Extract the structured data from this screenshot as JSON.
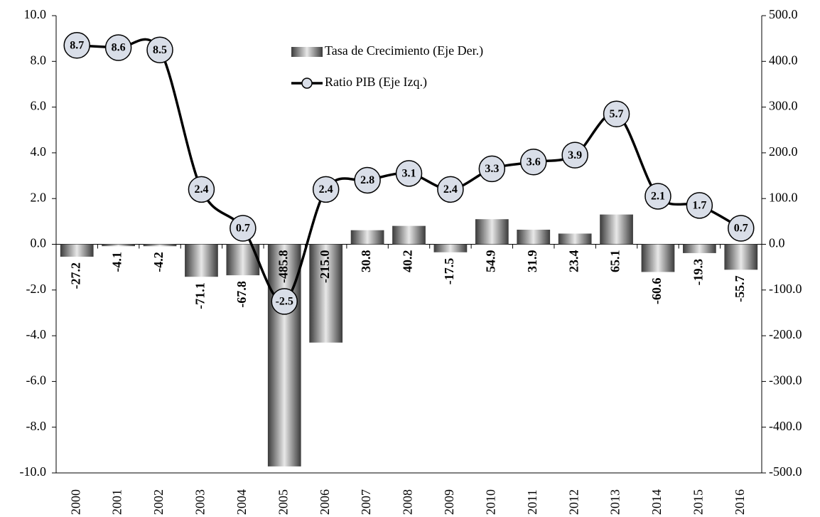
{
  "chart_data": {
    "type": "bar-line",
    "categories": [
      "2000",
      "2001",
      "2002",
      "2003",
      "2004",
      "2005",
      "2006",
      "2007",
      "2008",
      "2009",
      "2010",
      "2011",
      "2012",
      "2013",
      "2014",
      "2015",
      "2016"
    ],
    "series": [
      {
        "name": "Tasa de Crecimiento (Eje Der.)",
        "type": "bar",
        "axis": "y2",
        "color": "#808080",
        "values": [
          -27.2,
          -4.1,
          -4.2,
          -71.1,
          -67.8,
          -485.8,
          -215,
          30.8,
          40.2,
          -17.5,
          54.9,
          31.9,
          23.4,
          65.1,
          -60.6,
          -19.3,
          -55.7
        ],
        "value_labels": [
          "-27.2",
          "-4.1",
          "-4.2",
          "-71.1",
          "-67.8",
          "-485.8",
          "-215.0",
          "30.8",
          "40.2",
          "-17.5",
          "54.9",
          "31.9",
          "23.4",
          "65.1",
          "-60.6",
          "-19.3",
          "-55.7"
        ]
      },
      {
        "name": "Ratio PIB (Eje Izq.)",
        "type": "line",
        "axis": "y",
        "color": "#000000",
        "marker_fill": "#d9dee8",
        "values": [
          8.7,
          8.6,
          8.5,
          2.4,
          0.7,
          -2.5,
          2.4,
          2.8,
          3.1,
          2.4,
          3.3,
          3.6,
          3.9,
          5.7,
          2.1,
          1.7,
          0.7
        ]
      }
    ],
    "ylim": [
      -10,
      10
    ],
    "yticks": [
      {
        "value": -10,
        "label": "-10.0"
      },
      {
        "value": -8,
        "label": "-8.0"
      },
      {
        "value": -6,
        "label": "-6.0"
      },
      {
        "value": -4,
        "label": "-4.0"
      },
      {
        "value": -2,
        "label": "-2.0"
      },
      {
        "value": 0,
        "label": "0.0"
      },
      {
        "value": 2,
        "label": "2.0"
      },
      {
        "value": 4,
        "label": "4.0"
      },
      {
        "value": 6,
        "label": "6.0"
      },
      {
        "value": 8,
        "label": "8.0"
      },
      {
        "value": 10,
        "label": "10.0"
      }
    ],
    "y2lim": [
      -500,
      500
    ],
    "y2ticks": [
      {
        "value": -500,
        "label": "-500.0"
      },
      {
        "value": -400,
        "label": "-400.0"
      },
      {
        "value": -300,
        "label": "-300.0"
      },
      {
        "value": -200,
        "label": "-200.0"
      },
      {
        "value": -100,
        "label": "-100.0"
      },
      {
        "value": 0,
        "label": "0.0"
      },
      {
        "value": 100,
        "label": "100.0"
      },
      {
        "value": 200,
        "label": "200.0"
      },
      {
        "value": 300,
        "label": "300.0"
      },
      {
        "value": 400,
        "label": "400.0"
      },
      {
        "value": 500,
        "label": "500.0"
      }
    ],
    "grid": false,
    "legend": "upper center"
  }
}
